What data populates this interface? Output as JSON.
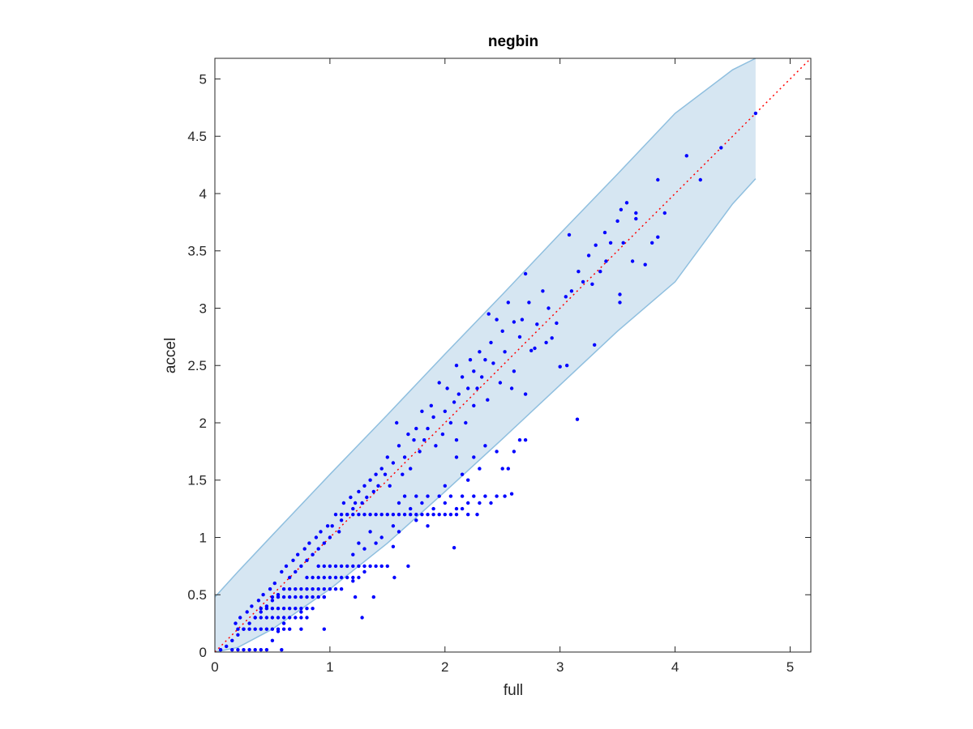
{
  "chart_data": {
    "type": "scatter",
    "title": "negbin",
    "xlabel": "full",
    "ylabel": "accel",
    "xlim": [
      0,
      5.18
    ],
    "ylim": [
      0,
      5.18
    ],
    "xticks": [
      0,
      1,
      2,
      3,
      4,
      5
    ],
    "yticks": [
      0,
      0.5,
      1,
      1.5,
      2,
      2.5,
      3,
      3.5,
      4,
      4.5,
      5
    ],
    "xtick_labels": [
      "0",
      "1",
      "2",
      "3",
      "4",
      "5"
    ],
    "ytick_labels": [
      "0",
      "0.5",
      "1",
      "1.5",
      "2",
      "2.5",
      "3",
      "3.5",
      "4",
      "4.5",
      "5"
    ],
    "grid": false,
    "box": true,
    "colors": {
      "points": "#0000ff",
      "reference_line": "#ff0000",
      "band_fill": "#d6e6f2",
      "band_edge": "#8fbfdf",
      "axes": "#262626"
    },
    "reference_line": {
      "x": [
        0,
        5.18
      ],
      "y": [
        0,
        5.18
      ],
      "style": "dotted"
    },
    "band": {
      "x": [
        0,
        0.2,
        0.5,
        1.0,
        1.5,
        2.0,
        2.5,
        3.0,
        3.5,
        4.0,
        4.5,
        4.7
      ],
      "upper": [
        0.48,
        0.7,
        1.02,
        1.55,
        2.07,
        2.6,
        3.12,
        3.65,
        4.17,
        4.7,
        5.08,
        5.18
      ],
      "lower": [
        0,
        0.04,
        0.2,
        0.55,
        0.95,
        1.4,
        1.86,
        2.33,
        2.8,
        3.23,
        3.91,
        4.13
      ]
    },
    "points": [
      [
        4.7,
        4.7
      ],
      [
        4.4,
        4.4
      ],
      [
        4.22,
        4.12
      ],
      [
        4.1,
        4.33
      ],
      [
        3.85,
        4.12
      ],
      [
        3.85,
        3.62
      ],
      [
        3.91,
        3.83
      ],
      [
        3.8,
        3.57
      ],
      [
        3.74,
        3.38
      ],
      [
        3.66,
        3.83
      ],
      [
        3.66,
        3.78
      ],
      [
        3.63,
        3.41
      ],
      [
        3.58,
        3.92
      ],
      [
        3.55,
        3.57
      ],
      [
        3.53,
        3.86
      ],
      [
        3.52,
        3.12
      ],
      [
        3.52,
        3.05
      ],
      [
        3.5,
        3.76
      ],
      [
        3.44,
        3.57
      ],
      [
        3.4,
        3.41
      ],
      [
        3.39,
        3.66
      ],
      [
        3.35,
        3.32
      ],
      [
        3.31,
        3.55
      ],
      [
        3.3,
        2.68
      ],
      [
        3.28,
        3.21
      ],
      [
        3.25,
        3.46
      ],
      [
        3.2,
        3.23
      ],
      [
        3.16,
        3.32
      ],
      [
        3.15,
        2.03
      ],
      [
        3.1,
        3.15
      ],
      [
        3.08,
        3.64
      ],
      [
        3.06,
        2.5
      ],
      [
        3.05,
        3.1
      ],
      [
        3.0,
        2.49
      ],
      [
        2.97,
        2.87
      ],
      [
        2.93,
        2.74
      ],
      [
        2.9,
        3.0
      ],
      [
        2.88,
        2.7
      ],
      [
        2.85,
        3.15
      ],
      [
        2.8,
        2.86
      ],
      [
        2.78,
        2.65
      ],
      [
        2.75,
        2.63
      ],
      [
        2.73,
        3.05
      ],
      [
        2.7,
        3.3
      ],
      [
        2.7,
        2.25
      ],
      [
        2.67,
        2.9
      ],
      [
        2.65,
        2.75
      ],
      [
        2.6,
        2.88
      ],
      [
        2.6,
        2.45
      ],
      [
        2.58,
        2.3
      ],
      [
        2.55,
        3.05
      ],
      [
        2.52,
        2.62
      ],
      [
        2.5,
        2.8
      ],
      [
        2.48,
        2.35
      ],
      [
        2.45,
        2.9
      ],
      [
        2.42,
        2.52
      ],
      [
        2.4,
        2.7
      ],
      [
        2.38,
        2.95
      ],
      [
        2.37,
        2.2
      ],
      [
        2.35,
        2.55
      ],
      [
        2.32,
        2.4
      ],
      [
        2.3,
        2.62
      ],
      [
        2.28,
        2.3
      ],
      [
        2.25,
        2.15
      ],
      [
        2.25,
        2.45
      ],
      [
        2.22,
        2.55
      ],
      [
        2.2,
        2.3
      ],
      [
        2.18,
        2.0
      ],
      [
        2.15,
        2.4
      ],
      [
        2.12,
        2.25
      ],
      [
        2.1,
        2.5
      ],
      [
        2.1,
        1.85
      ],
      [
        2.08,
        2.18
      ],
      [
        2.05,
        2.0
      ],
      [
        2.02,
        2.3
      ],
      [
        2.0,
        2.1
      ],
      [
        1.98,
        1.9
      ],
      [
        1.95,
        2.35
      ],
      [
        1.92,
        1.8
      ],
      [
        1.9,
        2.05
      ],
      [
        1.88,
        2.15
      ],
      [
        1.85,
        1.95
      ],
      [
        1.82,
        1.85
      ],
      [
        1.8,
        2.1
      ],
      [
        1.78,
        1.75
      ],
      [
        1.75,
        1.95
      ],
      [
        1.73,
        1.85
      ],
      [
        1.7,
        1.6
      ],
      [
        1.68,
        1.9
      ],
      [
        1.65,
        1.7
      ],
      [
        1.63,
        1.55
      ],
      [
        1.6,
        1.8
      ],
      [
        1.58,
        2.0
      ],
      [
        1.55,
        1.65
      ],
      [
        1.52,
        1.45
      ],
      [
        1.5,
        1.7
      ],
      [
        1.48,
        1.55
      ],
      [
        1.45,
        1.6
      ],
      [
        1.42,
        1.45
      ],
      [
        1.4,
        1.55
      ],
      [
        1.38,
        1.4
      ],
      [
        1.35,
        1.5
      ],
      [
        1.32,
        1.35
      ],
      [
        1.3,
        1.45
      ],
      [
        1.28,
        1.3
      ],
      [
        1.25,
        1.4
      ],
      [
        1.22,
        1.3
      ],
      [
        1.2,
        1.25
      ],
      [
        1.18,
        1.35
      ],
      [
        1.15,
        1.2
      ],
      [
        1.12,
        1.3
      ],
      [
        1.1,
        1.15
      ],
      [
        1.08,
        1.05
      ],
      [
        1.05,
        1.2
      ],
      [
        1.02,
        1.1
      ],
      [
        1.0,
        1.0
      ],
      [
        0.98,
        1.1
      ],
      [
        0.95,
        0.95
      ],
      [
        0.92,
        1.05
      ],
      [
        0.9,
        0.9
      ],
      [
        0.88,
        1.0
      ],
      [
        0.85,
        0.85
      ],
      [
        0.82,
        0.95
      ],
      [
        0.8,
        0.8
      ],
      [
        0.78,
        0.9
      ],
      [
        0.75,
        0.75
      ],
      [
        0.72,
        0.85
      ],
      [
        0.7,
        0.7
      ],
      [
        0.68,
        0.8
      ],
      [
        0.65,
        0.65
      ],
      [
        0.62,
        0.75
      ],
      [
        0.6,
        0.55
      ],
      [
        0.58,
        0.7
      ],
      [
        0.55,
        0.5
      ],
      [
        0.52,
        0.6
      ],
      [
        0.5,
        0.45
      ],
      [
        0.48,
        0.55
      ],
      [
        0.45,
        0.4
      ],
      [
        0.42,
        0.5
      ],
      [
        0.4,
        0.35
      ],
      [
        0.38,
        0.45
      ],
      [
        0.35,
        0.3
      ],
      [
        0.32,
        0.4
      ],
      [
        0.3,
        0.25
      ],
      [
        0.28,
        0.35
      ],
      [
        0.25,
        0.2
      ],
      [
        0.22,
        0.3
      ],
      [
        0.2,
        0.15
      ],
      [
        0.18,
        0.25
      ],
      [
        0.15,
        0.1
      ],
      [
        0.1,
        0.05
      ],
      [
        0.05,
        0.02
      ],
      [
        2.08,
        0.91
      ],
      [
        1.55,
        0.92
      ],
      [
        1.3,
        0.7
      ],
      [
        1.2,
        0.62
      ],
      [
        0.95,
        0.48
      ],
      [
        0.75,
        0.35
      ],
      [
        0.6,
        0.25
      ],
      [
        0.55,
        0.18
      ],
      [
        0.5,
        0.1
      ],
      [
        0.45,
        0.02
      ],
      [
        0.4,
        0.02
      ],
      [
        0.35,
        0.02
      ],
      [
        0.3,
        0.02
      ],
      [
        0.25,
        0.02
      ],
      [
        0.2,
        0.02
      ],
      [
        0.15,
        0.02
      ],
      [
        0.58,
        0.02
      ],
      [
        2.7,
        1.85
      ],
      [
        2.65,
        1.85
      ],
      [
        2.6,
        1.75
      ],
      [
        2.55,
        1.6
      ],
      [
        2.5,
        1.6
      ],
      [
        2.45,
        1.75
      ],
      [
        2.35,
        1.8
      ],
      [
        2.3,
        1.6
      ],
      [
        2.25,
        1.7
      ],
      [
        2.2,
        1.5
      ],
      [
        2.15,
        1.55
      ],
      [
        2.1,
        1.7
      ],
      [
        2.0,
        1.45
      ],
      [
        2.58,
        1.38
      ],
      [
        2.52,
        1.36
      ],
      [
        2.45,
        1.36
      ],
      [
        2.4,
        1.3
      ],
      [
        2.35,
        1.36
      ],
      [
        2.3,
        1.3
      ],
      [
        2.25,
        1.36
      ],
      [
        2.2,
        1.3
      ],
      [
        2.15,
        1.36
      ],
      [
        2.1,
        1.25
      ],
      [
        2.05,
        1.36
      ],
      [
        2.0,
        1.3
      ],
      [
        1.95,
        1.36
      ],
      [
        1.9,
        1.25
      ],
      [
        1.85,
        1.36
      ],
      [
        1.8,
        1.3
      ],
      [
        1.75,
        1.36
      ],
      [
        1.7,
        1.25
      ],
      [
        1.65,
        1.36
      ],
      [
        1.6,
        1.3
      ],
      [
        2.28,
        1.2
      ],
      [
        2.2,
        1.2
      ],
      [
        2.15,
        1.25
      ],
      [
        2.1,
        1.2
      ],
      [
        2.05,
        1.2
      ],
      [
        2.0,
        1.2
      ],
      [
        1.95,
        1.2
      ],
      [
        1.9,
        1.2
      ],
      [
        1.85,
        1.2
      ],
      [
        1.8,
        1.2
      ],
      [
        1.75,
        1.2
      ],
      [
        1.7,
        1.2
      ],
      [
        1.65,
        1.2
      ],
      [
        1.6,
        1.2
      ],
      [
        1.55,
        1.2
      ],
      [
        1.5,
        1.2
      ],
      [
        1.45,
        1.2
      ],
      [
        1.4,
        1.2
      ],
      [
        1.35,
        1.2
      ],
      [
        1.3,
        1.2
      ],
      [
        1.25,
        1.2
      ],
      [
        1.2,
        1.2
      ],
      [
        1.15,
        1.2
      ],
      [
        1.1,
        1.2
      ],
      [
        1.85,
        1.1
      ],
      [
        1.75,
        1.15
      ],
      [
        1.6,
        1.05
      ],
      [
        1.55,
        1.1
      ],
      [
        1.45,
        1.0
      ],
      [
        1.4,
        0.95
      ],
      [
        1.35,
        1.05
      ],
      [
        1.3,
        0.9
      ],
      [
        1.25,
        0.95
      ],
      [
        1.2,
        0.85
      ],
      [
        1.5,
        0.75
      ],
      [
        1.45,
        0.75
      ],
      [
        1.4,
        0.75
      ],
      [
        1.35,
        0.75
      ],
      [
        1.3,
        0.75
      ],
      [
        1.25,
        0.75
      ],
      [
        1.2,
        0.75
      ],
      [
        1.15,
        0.75
      ],
      [
        1.1,
        0.75
      ],
      [
        1.05,
        0.75
      ],
      [
        1.0,
        0.75
      ],
      [
        0.95,
        0.75
      ],
      [
        0.9,
        0.75
      ],
      [
        1.25,
        0.65
      ],
      [
        1.2,
        0.65
      ],
      [
        1.15,
        0.65
      ],
      [
        1.1,
        0.65
      ],
      [
        1.05,
        0.65
      ],
      [
        1.0,
        0.65
      ],
      [
        0.95,
        0.65
      ],
      [
        0.9,
        0.65
      ],
      [
        0.85,
        0.65
      ],
      [
        0.8,
        0.65
      ],
      [
        1.1,
        0.55
      ],
      [
        1.05,
        0.55
      ],
      [
        1.0,
        0.55
      ],
      [
        0.95,
        0.55
      ],
      [
        0.9,
        0.55
      ],
      [
        0.85,
        0.55
      ],
      [
        0.8,
        0.55
      ],
      [
        0.75,
        0.55
      ],
      [
        0.7,
        0.55
      ],
      [
        0.65,
        0.55
      ],
      [
        0.95,
        0.48
      ],
      [
        0.9,
        0.48
      ],
      [
        0.85,
        0.48
      ],
      [
        0.8,
        0.48
      ],
      [
        0.75,
        0.48
      ],
      [
        0.7,
        0.48
      ],
      [
        0.65,
        0.48
      ],
      [
        0.6,
        0.48
      ],
      [
        0.55,
        0.48
      ],
      [
        0.5,
        0.48
      ],
      [
        0.85,
        0.38
      ],
      [
        0.8,
        0.38
      ],
      [
        0.75,
        0.38
      ],
      [
        0.7,
        0.38
      ],
      [
        0.65,
        0.38
      ],
      [
        0.6,
        0.38
      ],
      [
        0.55,
        0.38
      ],
      [
        0.5,
        0.38
      ],
      [
        0.45,
        0.38
      ],
      [
        0.4,
        0.38
      ],
      [
        0.8,
        0.3
      ],
      [
        0.75,
        0.3
      ],
      [
        0.7,
        0.3
      ],
      [
        0.65,
        0.3
      ],
      [
        0.6,
        0.3
      ],
      [
        0.55,
        0.3
      ],
      [
        0.5,
        0.3
      ],
      [
        0.45,
        0.3
      ],
      [
        0.4,
        0.3
      ],
      [
        0.35,
        0.3
      ],
      [
        0.65,
        0.2
      ],
      [
        0.6,
        0.2
      ],
      [
        0.55,
        0.2
      ],
      [
        0.5,
        0.2
      ],
      [
        0.45,
        0.2
      ],
      [
        0.4,
        0.2
      ],
      [
        0.35,
        0.2
      ],
      [
        0.3,
        0.2
      ],
      [
        0.25,
        0.2
      ],
      [
        0.2,
        0.2
      ],
      [
        1.28,
        0.3
      ],
      [
        0.95,
        0.2
      ],
      [
        0.75,
        0.2
      ],
      [
        1.38,
        0.48
      ],
      [
        1.22,
        0.48
      ],
      [
        1.68,
        0.75
      ],
      [
        1.56,
        0.65
      ]
    ]
  }
}
